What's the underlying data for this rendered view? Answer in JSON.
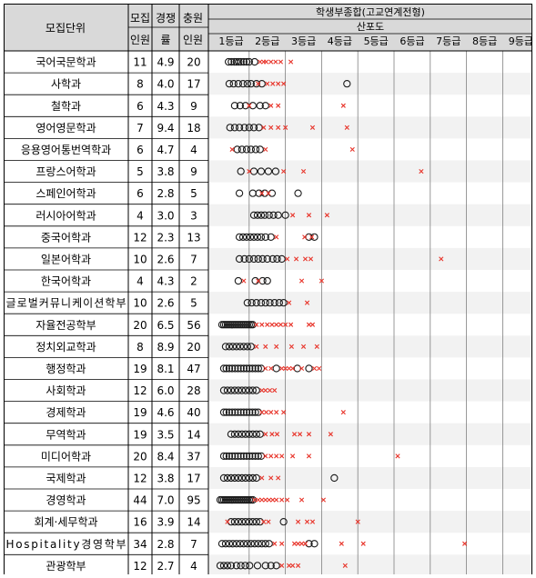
{
  "header": {
    "unit": "모집단위",
    "recruit_1": "모집",
    "recruit_2": "인원",
    "comp_1": "경쟁",
    "comp_2": "률",
    "fill_1": "충원",
    "fill_2": "인원",
    "main_title": "학생부종합(고교연계전형)",
    "scatter_title": "산포도"
  },
  "colors": {
    "header_bg": "#d9d9d9",
    "circle": "#1a1a1a",
    "cross": "#e8352b",
    "grid": "#808080",
    "row_alt": "#f2f2f2"
  },
  "chart_data": {
    "type": "scatter",
    "title": "산포도",
    "x_unit": "등급",
    "xlim": [
      1,
      9
    ],
    "ticks": [
      "1등급",
      "2등급",
      "3등급",
      "4등급",
      "5등급",
      "6등급",
      "7등급",
      "8등급",
      "9등급"
    ],
    "legend": "none",
    "rows": [
      {
        "dept": "국어국문학과",
        "recruit": "11",
        "comp": "4.9",
        "fill": "20",
        "circles": [
          1.28,
          1.36,
          1.44,
          1.5,
          1.56,
          1.62,
          1.7,
          1.78,
          1.85,
          2.0
        ],
        "crosses": [
          2.15,
          2.25,
          2.32,
          2.45,
          2.58,
          2.72,
          3.0
        ]
      },
      {
        "dept": "사학과",
        "recruit": "8",
        "comp": "4.0",
        "fill": "17",
        "circles": [
          1.3,
          1.42,
          1.55,
          1.68,
          1.8,
          1.9,
          2.05,
          2.2,
          4.55
        ],
        "crosses": [
          2.1,
          2.35,
          2.5,
          2.65,
          2.8
        ]
      },
      {
        "dept": "철학과",
        "recruit": "6",
        "comp": "4.3",
        "fill": "9",
        "circles": [
          1.45,
          1.6,
          1.75,
          1.95,
          2.15,
          2.3
        ],
        "crosses": [
          1.85,
          2.45,
          2.65,
          4.45
        ]
      },
      {
        "dept": "영어영문학과",
        "recruit": "7",
        "comp": "9.4",
        "fill": "18",
        "circles": [
          1.32,
          1.45,
          1.58,
          1.72,
          1.85,
          1.98,
          2.12
        ],
        "crosses": [
          2.25,
          2.45,
          2.65,
          2.85,
          3.6,
          4.55
        ]
      },
      {
        "dept": "응용영어통번역학과",
        "recruit": "6",
        "comp": "4.7",
        "fill": "4",
        "circles": [
          1.52,
          1.65,
          1.78,
          1.9,
          2.03,
          2.15
        ],
        "crosses": [
          1.38,
          2.3,
          4.7
        ]
      },
      {
        "dept": "프랑스어학과",
        "recruit": "5",
        "comp": "3.8",
        "fill": "9",
        "circles": [
          1.62,
          1.98,
          2.18,
          2.38,
          2.58
        ],
        "crosses": [
          1.85,
          2.8,
          3.35,
          6.6
        ]
      },
      {
        "dept": "스페인어학과",
        "recruit": "6",
        "comp": "2.8",
        "fill": "5",
        "circles": [
          1.58,
          1.95,
          2.12,
          2.28,
          2.48,
          3.2
        ],
        "crosses": [
          2.2,
          2.38
        ]
      },
      {
        "dept": "러시아어학과",
        "recruit": "4",
        "comp": "3.0",
        "fill": "3",
        "circles": [
          1.98,
          2.08,
          2.18,
          2.28,
          2.4,
          2.52,
          2.65,
          2.85
        ],
        "crosses": [
          3.05,
          3.5,
          4.0
        ]
      },
      {
        "dept": "중국어학과",
        "recruit": "12",
        "comp": "2.3",
        "fill": "13",
        "circles": [
          1.58,
          1.68,
          1.78,
          1.88,
          1.98,
          2.08,
          2.18,
          2.3,
          2.45,
          3.5,
          3.65
        ],
        "crosses": [
          2.6,
          3.38,
          3.58
        ]
      },
      {
        "dept": "일본어학과",
        "recruit": "10",
        "comp": "2.6",
        "fill": "7",
        "circles": [
          1.58,
          1.72,
          1.85,
          1.98,
          2.1,
          2.22,
          2.35,
          2.5,
          2.62,
          2.75
        ],
        "crosses": [
          2.9,
          3.15,
          3.4,
          3.55,
          7.15
        ]
      },
      {
        "dept": "한국어학과",
        "recruit": "4",
        "comp": "4.3",
        "fill": "2",
        "circles": [
          1.55,
          2.02,
          2.22,
          2.35
        ],
        "crosses": [
          1.7,
          2.1,
          3.3,
          3.85
        ]
      },
      {
        "dept": "글로벌커뮤니케이션학부",
        "recruit": "10",
        "comp": "2.6",
        "fill": "5",
        "circles": [
          1.8,
          1.92,
          2.05,
          2.18,
          2.3,
          2.42,
          2.55,
          2.68,
          2.8
        ],
        "crosses": [
          2.95,
          3.45
        ]
      },
      {
        "dept": "자율전공학부",
        "recruit": "20",
        "comp": "6.5",
        "fill": "56",
        "circles": [
          1.1,
          1.15,
          1.2,
          1.25,
          1.3,
          1.35,
          1.4,
          1.45,
          1.5,
          1.55,
          1.6,
          1.65,
          1.7,
          1.75,
          1.8,
          1.85,
          1.9,
          1.95
        ],
        "crosses": [
          2.05,
          2.2,
          2.35,
          2.48,
          2.6,
          2.72,
          2.85,
          3.0,
          3.5,
          3.6
        ]
      },
      {
        "dept": "정치외교학과",
        "recruit": "8",
        "comp": "8.9",
        "fill": "20",
        "circles": [
          1.2,
          1.3,
          1.4,
          1.5,
          1.6,
          1.7,
          1.8,
          1.9
        ],
        "crosses": [
          2.05,
          2.3,
          2.6,
          3.02,
          3.35,
          3.72
        ]
      },
      {
        "dept": "행정학과",
        "recruit": "19",
        "comp": "8.1",
        "fill": "47",
        "circles": [
          1.15,
          1.22,
          1.3,
          1.38,
          1.46,
          1.54,
          1.62,
          1.7,
          1.78,
          1.86,
          1.94,
          2.02,
          2.1,
          2.18,
          2.6,
          3.18,
          3.5
        ],
        "crosses": [
          2.3,
          2.45,
          2.75,
          2.85,
          2.95,
          3.05,
          3.3,
          3.65,
          3.78
        ]
      },
      {
        "dept": "사회학과",
        "recruit": "12",
        "comp": "6.0",
        "fill": "28",
        "circles": [
          1.15,
          1.25,
          1.35,
          1.45,
          1.55,
          1.65,
          1.75,
          1.85,
          1.95,
          2.05
        ],
        "crosses": [
          2.2,
          2.3,
          2.42,
          2.55
        ]
      },
      {
        "dept": "경제학과",
        "recruit": "19",
        "comp": "4.6",
        "fill": "40",
        "circles": [
          1.15,
          1.22,
          1.3,
          1.38,
          1.46,
          1.54,
          1.62,
          1.7,
          1.78,
          1.86,
          1.94,
          2.02,
          2.1
        ],
        "crosses": [
          2.2,
          2.32,
          2.45,
          2.6,
          2.8,
          4.45
        ]
      },
      {
        "dept": "무역학과",
        "recruit": "19",
        "comp": "3.5",
        "fill": "14",
        "circles": [
          1.35,
          1.45,
          1.55,
          1.65,
          1.75,
          1.85,
          1.95,
          2.05,
          2.15
        ],
        "crosses": [
          2.3,
          2.48,
          2.62,
          3.1,
          3.25,
          3.5,
          4.1
        ]
      },
      {
        "dept": "미디어학과",
        "recruit": "20",
        "comp": "8.4",
        "fill": "37",
        "circles": [
          1.15,
          1.22,
          1.3,
          1.38,
          1.46,
          1.54,
          1.62,
          1.7,
          1.78,
          1.86,
          1.94,
          2.02,
          2.1,
          2.18
        ],
        "crosses": [
          2.3,
          2.45,
          2.6,
          2.75,
          3.05,
          3.5,
          5.95
        ]
      },
      {
        "dept": "국제학과",
        "recruit": "12",
        "comp": "3.8",
        "fill": "17",
        "circles": [
          1.15,
          1.25,
          1.35,
          1.45,
          1.55,
          1.65,
          1.75,
          1.85,
          1.95,
          2.05,
          4.2
        ],
        "crosses": [
          2.2,
          2.45,
          2.65
        ]
      },
      {
        "dept": "경영학과",
        "recruit": "44",
        "comp": "7.0",
        "fill": "95",
        "circles": [
          1.05,
          1.1,
          1.15,
          1.2,
          1.25,
          1.3,
          1.35,
          1.4,
          1.45,
          1.5,
          1.55,
          1.6,
          1.65,
          1.7,
          1.75,
          1.8,
          1.85,
          1.9,
          1.95
        ],
        "crosses": [
          2.0,
          2.1,
          2.2,
          2.3,
          2.4,
          2.5,
          2.6,
          2.75,
          2.9,
          3.3,
          3.9
        ]
      },
      {
        "dept": "회계·세무학과",
        "recruit": "16",
        "comp": "3.9",
        "fill": "14",
        "circles": [
          1.35,
          1.45,
          1.55,
          1.65,
          1.75,
          1.85,
          1.95,
          2.05,
          2.15,
          2.8
        ],
        "crosses": [
          1.25,
          2.25,
          2.38,
          3.2,
          3.45,
          3.6,
          4.85
        ]
      },
      {
        "dept": "Hospitality경영학부",
        "recruit": "34",
        "comp": "2.8",
        "fill": "7",
        "circles": [
          1.1,
          1.2,
          1.3,
          1.4,
          1.5,
          1.6,
          1.7,
          1.8,
          1.9,
          2.0,
          2.1,
          2.2,
          2.3,
          2.4,
          3.5,
          3.65
        ],
        "crosses": [
          2.55,
          2.75,
          3.1,
          3.2,
          3.3,
          3.4,
          4.4,
          5.0,
          7.8
        ]
      },
      {
        "dept": "관광학부",
        "recruit": "12",
        "comp": "2.7",
        "fill": "4",
        "circles": [
          1.05,
          1.15,
          1.25,
          1.35,
          1.5,
          1.62,
          1.74,
          1.86,
          2.08,
          2.3,
          2.45,
          2.6
        ],
        "crosses": [
          2.75,
          2.95,
          3.05,
          3.2,
          4.5
        ]
      }
    ]
  }
}
